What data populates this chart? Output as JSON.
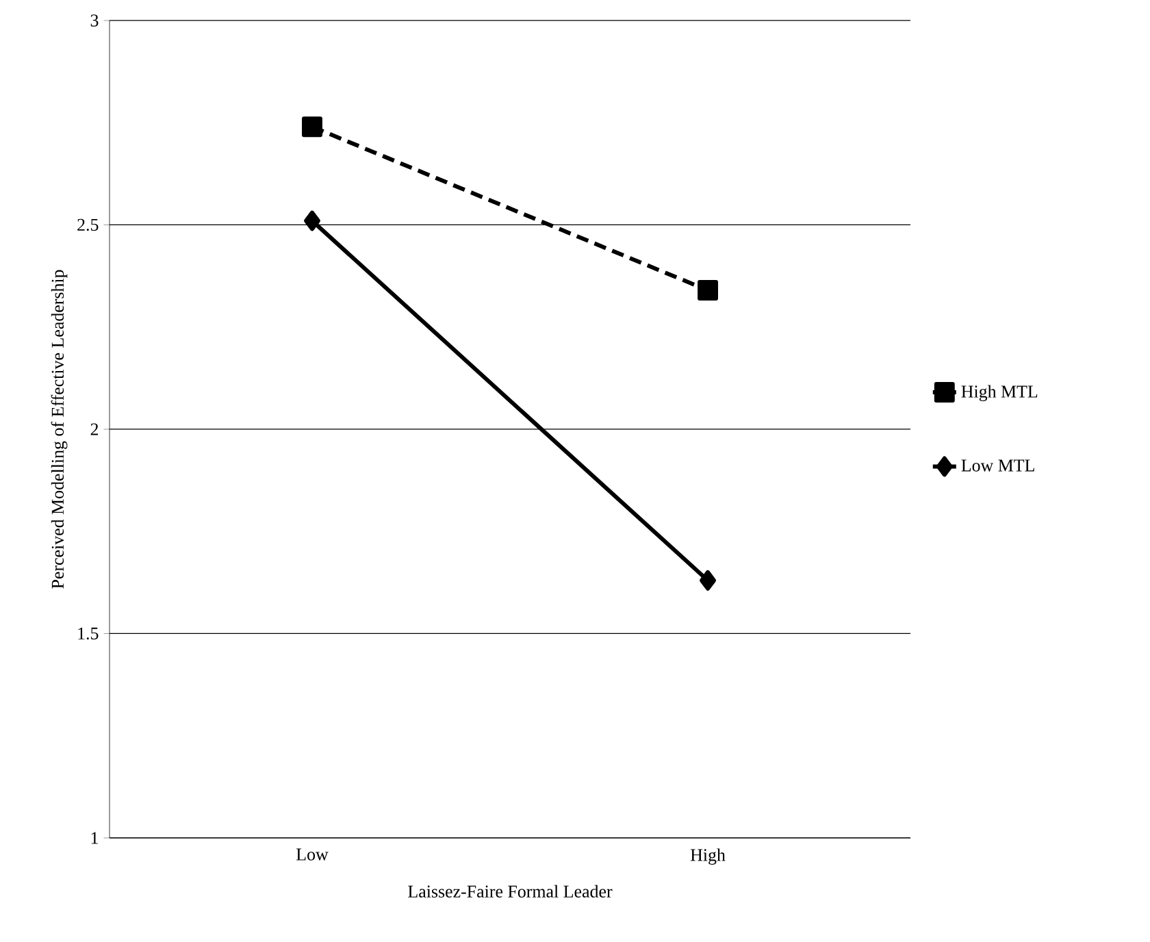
{
  "chart_data": {
    "type": "line",
    "xlabel": "Laissez-Faire Formal Leader",
    "ylabel": "Perceived Modelling of Effective Leadership",
    "categories": [
      "Low",
      "High"
    ],
    "series": [
      {
        "name": "High MTL",
        "color": "#000000",
        "values": [
          2.74,
          2.34
        ],
        "marker": "square",
        "line_style": "dashed"
      },
      {
        "name": "Low MTL",
        "color": "#000000",
        "values": [
          2.51,
          1.63
        ],
        "marker": "diamond",
        "line_style": "solid"
      }
    ],
    "ylim": [
      1,
      3
    ],
    "yticks": [
      1,
      1.5,
      2,
      2.5,
      3
    ],
    "grid": "y",
    "legend": "right"
  }
}
